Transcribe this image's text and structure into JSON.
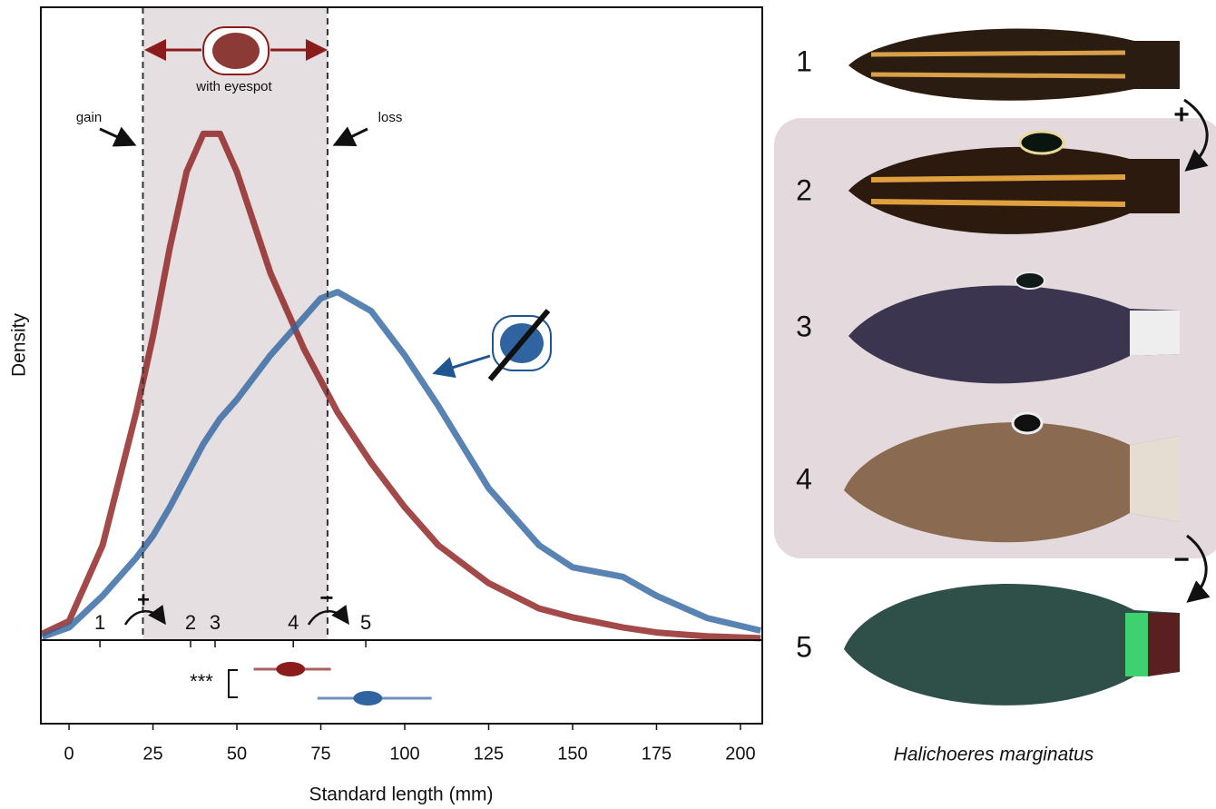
{
  "chart_data": {
    "type": "line",
    "xlabel": "Standard length (mm)",
    "ylabel": "Density",
    "xlim": [
      -8.4,
      206.5
    ],
    "ylim": [
      0,
      1
    ],
    "xticks": [
      0,
      25,
      50,
      75,
      100,
      125,
      150,
      175,
      200
    ],
    "x": [
      -8,
      0,
      10,
      20,
      25,
      30,
      35,
      40,
      45,
      50,
      60,
      70,
      75,
      80,
      90,
      100,
      110,
      125,
      140,
      150,
      165,
      175,
      190,
      206
    ],
    "series": [
      {
        "name": "with eyespot",
        "color": "#8c1c1c",
        "values": [
          0.01,
          0.03,
          0.15,
          0.36,
          0.48,
          0.62,
          0.74,
          0.8,
          0.8,
          0.74,
          0.58,
          0.46,
          0.41,
          0.36,
          0.28,
          0.21,
          0.15,
          0.09,
          0.05,
          0.036,
          0.02,
          0.012,
          0.006,
          0.003
        ]
      },
      {
        "color": "#2f64a0",
        "values": [
          0.005,
          0.02,
          0.07,
          0.13,
          0.165,
          0.21,
          0.26,
          0.31,
          0.35,
          0.38,
          0.45,
          0.51,
          0.54,
          0.55,
          0.52,
          0.45,
          0.37,
          0.24,
          0.15,
          0.115,
          0.1,
          0.07,
          0.035,
          0.015
        ]
      }
    ],
    "shaded_region": [
      22,
      77
    ],
    "annotations": {
      "gain": "gain",
      "loss": "loss",
      "gain_sign": "+",
      "loss_sign": "−"
    },
    "specimens": {
      "labels": [
        "1",
        "2",
        "3",
        "4",
        "5"
      ],
      "x": [
        9.2,
        36.2,
        43.5,
        66.8,
        88.4
      ]
    },
    "intervals": [
      {
        "color": "#8c1c1c",
        "center": 66,
        "range": [
          55,
          78
        ]
      },
      {
        "color": "#2f64a0",
        "center": 89,
        "range": [
          74,
          108
        ]
      }
    ],
    "significance": "***"
  },
  "panel": {
    "numbers": [
      "1",
      "2",
      "3",
      "4",
      "5"
    ],
    "gain_sign": "+",
    "loss_sign": "−",
    "species": "Halichoeres marginatus"
  }
}
